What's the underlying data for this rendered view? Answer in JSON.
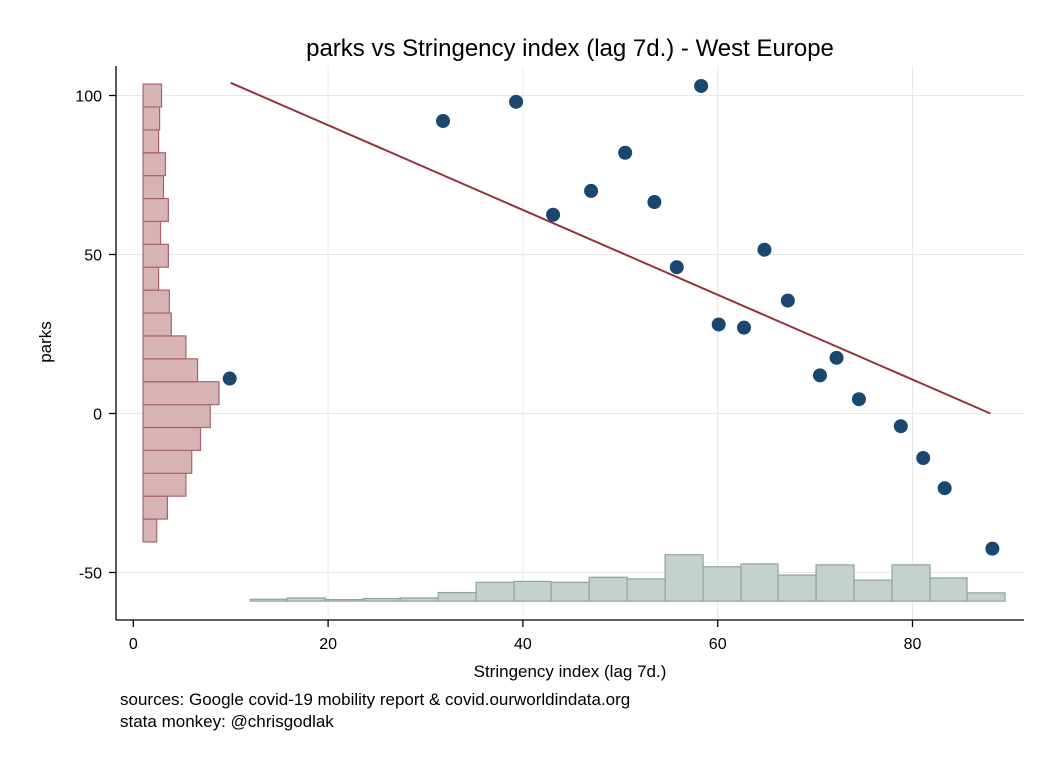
{
  "chart_data": {
    "type": "scatter",
    "title": "parks vs Stringency index (lag 7d.) - West Europe",
    "xlabel": "Stringency index (lag 7d.)",
    "ylabel": "parks",
    "xlim": [
      -2,
      91
    ],
    "ylim": [
      -64,
      110
    ],
    "xticks": [
      0,
      20,
      40,
      60,
      80
    ],
    "yticks": [
      -50,
      0,
      50,
      100
    ],
    "grid": true,
    "colors": {
      "points": "#1a476f",
      "fit_line": "#90353b",
      "y_hist_fill": "#d8b3b6",
      "y_hist_stroke": "#a8636a",
      "x_hist_fill": "#c4d1cd",
      "x_hist_stroke": "#8fa39c",
      "grid": "#e8e8e8"
    },
    "points": [
      {
        "x": 9.9,
        "y": 11
      },
      {
        "x": 31.8,
        "y": 92
      },
      {
        "x": 39.3,
        "y": 98
      },
      {
        "x": 43.1,
        "y": 62.5
      },
      {
        "x": 47.0,
        "y": 70
      },
      {
        "x": 50.5,
        "y": 82
      },
      {
        "x": 53.5,
        "y": 66.5
      },
      {
        "x": 55.8,
        "y": 46
      },
      {
        "x": 58.3,
        "y": 103
      },
      {
        "x": 60.1,
        "y": 28
      },
      {
        "x": 62.7,
        "y": 27
      },
      {
        "x": 64.8,
        "y": 51.5
      },
      {
        "x": 67.2,
        "y": 35.5
      },
      {
        "x": 70.5,
        "y": 12
      },
      {
        "x": 72.2,
        "y": 17.5
      },
      {
        "x": 74.5,
        "y": 4.5
      },
      {
        "x": 78.8,
        "y": -4
      },
      {
        "x": 81.1,
        "y": -14
      },
      {
        "x": 83.3,
        "y": -23.5
      },
      {
        "x": 88.2,
        "y": -42.5
      }
    ],
    "fit_line": {
      "x": [
        10,
        88
      ],
      "y": [
        104,
        0
      ]
    },
    "y_histogram": {
      "bin_width": 7.2,
      "bins": [
        {
          "y_from": -40.4,
          "length": 1.4
        },
        {
          "y_from": -33.2,
          "length": 2.5
        },
        {
          "y_from": -26.0,
          "length": 4.4
        },
        {
          "y_from": -18.8,
          "length": 5.0
        },
        {
          "y_from": -11.6,
          "length": 5.9
        },
        {
          "y_from": -4.4,
          "length": 6.9
        },
        {
          "y_from": 2.8,
          "length": 7.8
        },
        {
          "y_from": 10.0,
          "length": 5.6
        },
        {
          "y_from": 17.2,
          "length": 4.4
        },
        {
          "y_from": 24.4,
          "length": 2.9
        },
        {
          "y_from": 31.6,
          "length": 2.7
        },
        {
          "y_from": 38.8,
          "length": 1.6
        },
        {
          "y_from": 46.0,
          "length": 2.6
        },
        {
          "y_from": 53.2,
          "length": 1.8
        },
        {
          "y_from": 60.4,
          "length": 2.6
        },
        {
          "y_from": 67.6,
          "length": 2.1
        },
        {
          "y_from": 74.8,
          "length": 2.3
        },
        {
          "y_from": 82.0,
          "length": 1.6
        },
        {
          "y_from": 89.2,
          "length": 1.7
        },
        {
          "y_from": 96.4,
          "length": 1.9
        }
      ]
    },
    "x_histogram": {
      "baseline": -59,
      "bins": [
        {
          "x_from": 12.0,
          "x_to": 15.8,
          "height": 0.6
        },
        {
          "x_from": 15.8,
          "x_to": 19.7,
          "height": 1.0
        },
        {
          "x_from": 19.7,
          "x_to": 23.6,
          "height": 0.5
        },
        {
          "x_from": 23.6,
          "x_to": 27.4,
          "height": 0.8
        },
        {
          "x_from": 27.4,
          "x_to": 31.3,
          "height": 1.0
        },
        {
          "x_from": 31.3,
          "x_to": 35.2,
          "height": 2.7
        },
        {
          "x_from": 35.2,
          "x_to": 39.1,
          "height": 5.9
        },
        {
          "x_from": 39.1,
          "x_to": 42.9,
          "height": 6.2
        },
        {
          "x_from": 42.9,
          "x_to": 46.8,
          "height": 5.9
        },
        {
          "x_from": 46.8,
          "x_to": 50.7,
          "height": 7.5
        },
        {
          "x_from": 50.7,
          "x_to": 54.6,
          "height": 7.0
        },
        {
          "x_from": 54.6,
          "x_to": 58.5,
          "height": 14.6
        },
        {
          "x_from": 58.5,
          "x_to": 62.4,
          "height": 10.8
        },
        {
          "x_from": 62.4,
          "x_to": 66.2,
          "height": 11.7
        },
        {
          "x_from": 66.2,
          "x_to": 70.1,
          "height": 8.2
        },
        {
          "x_from": 70.1,
          "x_to": 74.0,
          "height": 11.4
        },
        {
          "x_from": 74.0,
          "x_to": 77.9,
          "height": 6.6
        },
        {
          "x_from": 77.9,
          "x_to": 81.8,
          "height": 11.4
        },
        {
          "x_from": 81.8,
          "x_to": 85.6,
          "height": 7.3
        },
        {
          "x_from": 85.6,
          "x_to": 89.5,
          "height": 2.6
        }
      ]
    }
  },
  "notes": {
    "line1": "sources: Google covid-19 mobility report & covid.ourworldindata.org",
    "line2": "stata monkey: @chrisgodlak"
  }
}
